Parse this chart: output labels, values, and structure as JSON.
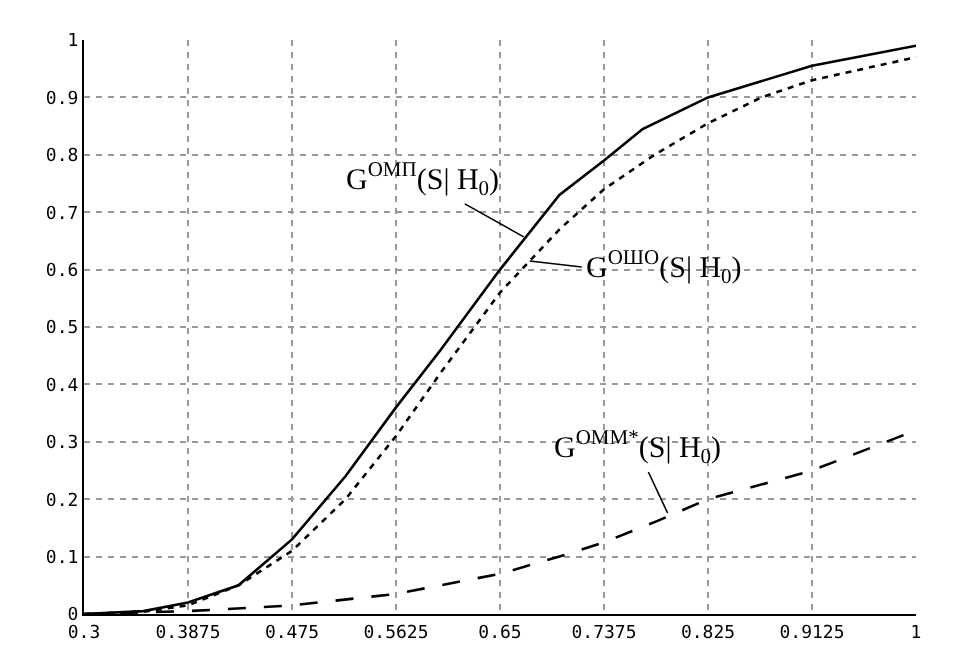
{
  "chart_data": {
    "type": "line",
    "xlim": [
      0.3,
      1
    ],
    "ylim": [
      0,
      1
    ],
    "xticks": [
      0.3,
      0.3875,
      0.475,
      0.5625,
      0.65,
      0.7375,
      0.825,
      0.9125,
      1
    ],
    "yticks": [
      0,
      0.1,
      0.2,
      0.3,
      0.4,
      0.5,
      0.6,
      0.7,
      0.8,
      0.9,
      1
    ],
    "grid": true,
    "series": [
      {
        "color": "#000000",
        "line_style": "solid",
        "x": [
          0.3,
          0.35,
          0.3875,
          0.43,
          0.475,
          0.52,
          0.5625,
          0.6,
          0.65,
          0.7,
          0.7375,
          0.77,
          0.825,
          0.9125,
          1
        ],
        "values": [
          0,
          0.005,
          0.02,
          0.05,
          0.13,
          0.24,
          0.36,
          0.46,
          0.6,
          0.73,
          0.79,
          0.845,
          0.9,
          0.955,
          0.99
        ]
      },
      {
        "color": "#000000",
        "line_style": "dotted",
        "x": [
          0.3,
          0.35,
          0.3875,
          0.43,
          0.475,
          0.52,
          0.5625,
          0.6,
          0.65,
          0.7,
          0.7375,
          0.78,
          0.825,
          0.87,
          0.9125,
          1
        ],
        "values": [
          0,
          0.004,
          0.015,
          0.05,
          0.11,
          0.2,
          0.31,
          0.42,
          0.56,
          0.67,
          0.74,
          0.8,
          0.855,
          0.9,
          0.93,
          0.97
        ]
      },
      {
        "color": "#000000",
        "line_style": "dashed",
        "x": [
          0.3,
          0.3875,
          0.475,
          0.5625,
          0.65,
          0.7,
          0.7375,
          0.78,
          0.825,
          0.9125,
          1
        ],
        "values": [
          0,
          0.005,
          0.015,
          0.035,
          0.07,
          0.1,
          0.125,
          0.16,
          0.2,
          0.25,
          0.32
        ]
      }
    ],
    "annotations": [
      {
        "text": "G$^{ОМП}$(S| H$_{0}$)",
        "x": 0.67,
        "y": 0.657
      },
      {
        "text": "G$^{ОШО}$(S| H$_{0}$)",
        "x": 0.675,
        "y": 0.615
      },
      {
        "text": "G$^{ОММ*}$(S| H$_{0}$)",
        "x": 0.791,
        "y": 0.176
      }
    ]
  }
}
